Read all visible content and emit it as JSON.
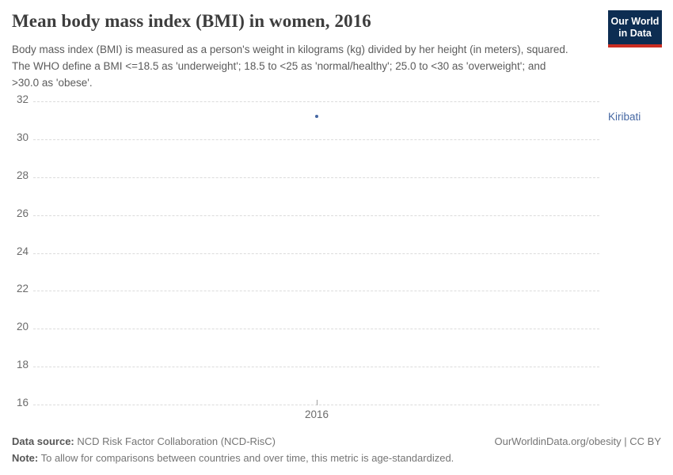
{
  "header": {
    "title": "Mean body mass index (BMI) in women, 2016",
    "subtitle": "Body mass index (BMI) is measured as a person's weight in kilograms (kg) divided by her height (in meters), squared. The WHO define a BMI <=18.5 as 'underweight'; 18.5 to <25 as 'normal/healthy'; 25.0 to <30 as 'overweight'; and >30.0 as 'obese'.",
    "logo": {
      "line1": "Our World",
      "line2": "in Data",
      "bg_color": "#0d2d52",
      "bar_color": "#cb2d22"
    }
  },
  "chart_data": {
    "type": "scatter",
    "title": "Mean body mass index (BMI) in women, 2016",
    "series": [
      {
        "name": "Kiribati",
        "color": "#4668a3",
        "points": [
          {
            "x": 2016,
            "y": 31.2
          }
        ]
      }
    ],
    "xticks": [
      "2016"
    ],
    "yticks": [
      16,
      18,
      20,
      22,
      24,
      26,
      28,
      30,
      32
    ],
    "ylim": [
      16,
      32
    ],
    "xlabel": "",
    "ylabel": "",
    "grid": "horizontal-dashed",
    "legend": "entity-label-right",
    "grid_color": "#dcdcdc",
    "tick_color": "#6b6b6b"
  },
  "footer": {
    "datasource_label": "Data source:",
    "datasource_value": " NCD Risk Factor Collaboration (NCD-RisC)",
    "note_label": "Note:",
    "note_value": " To allow for comparisons between countries and over time, this metric is age-standardized.",
    "attribution": "OurWorldinData.org/obesity | CC BY"
  }
}
